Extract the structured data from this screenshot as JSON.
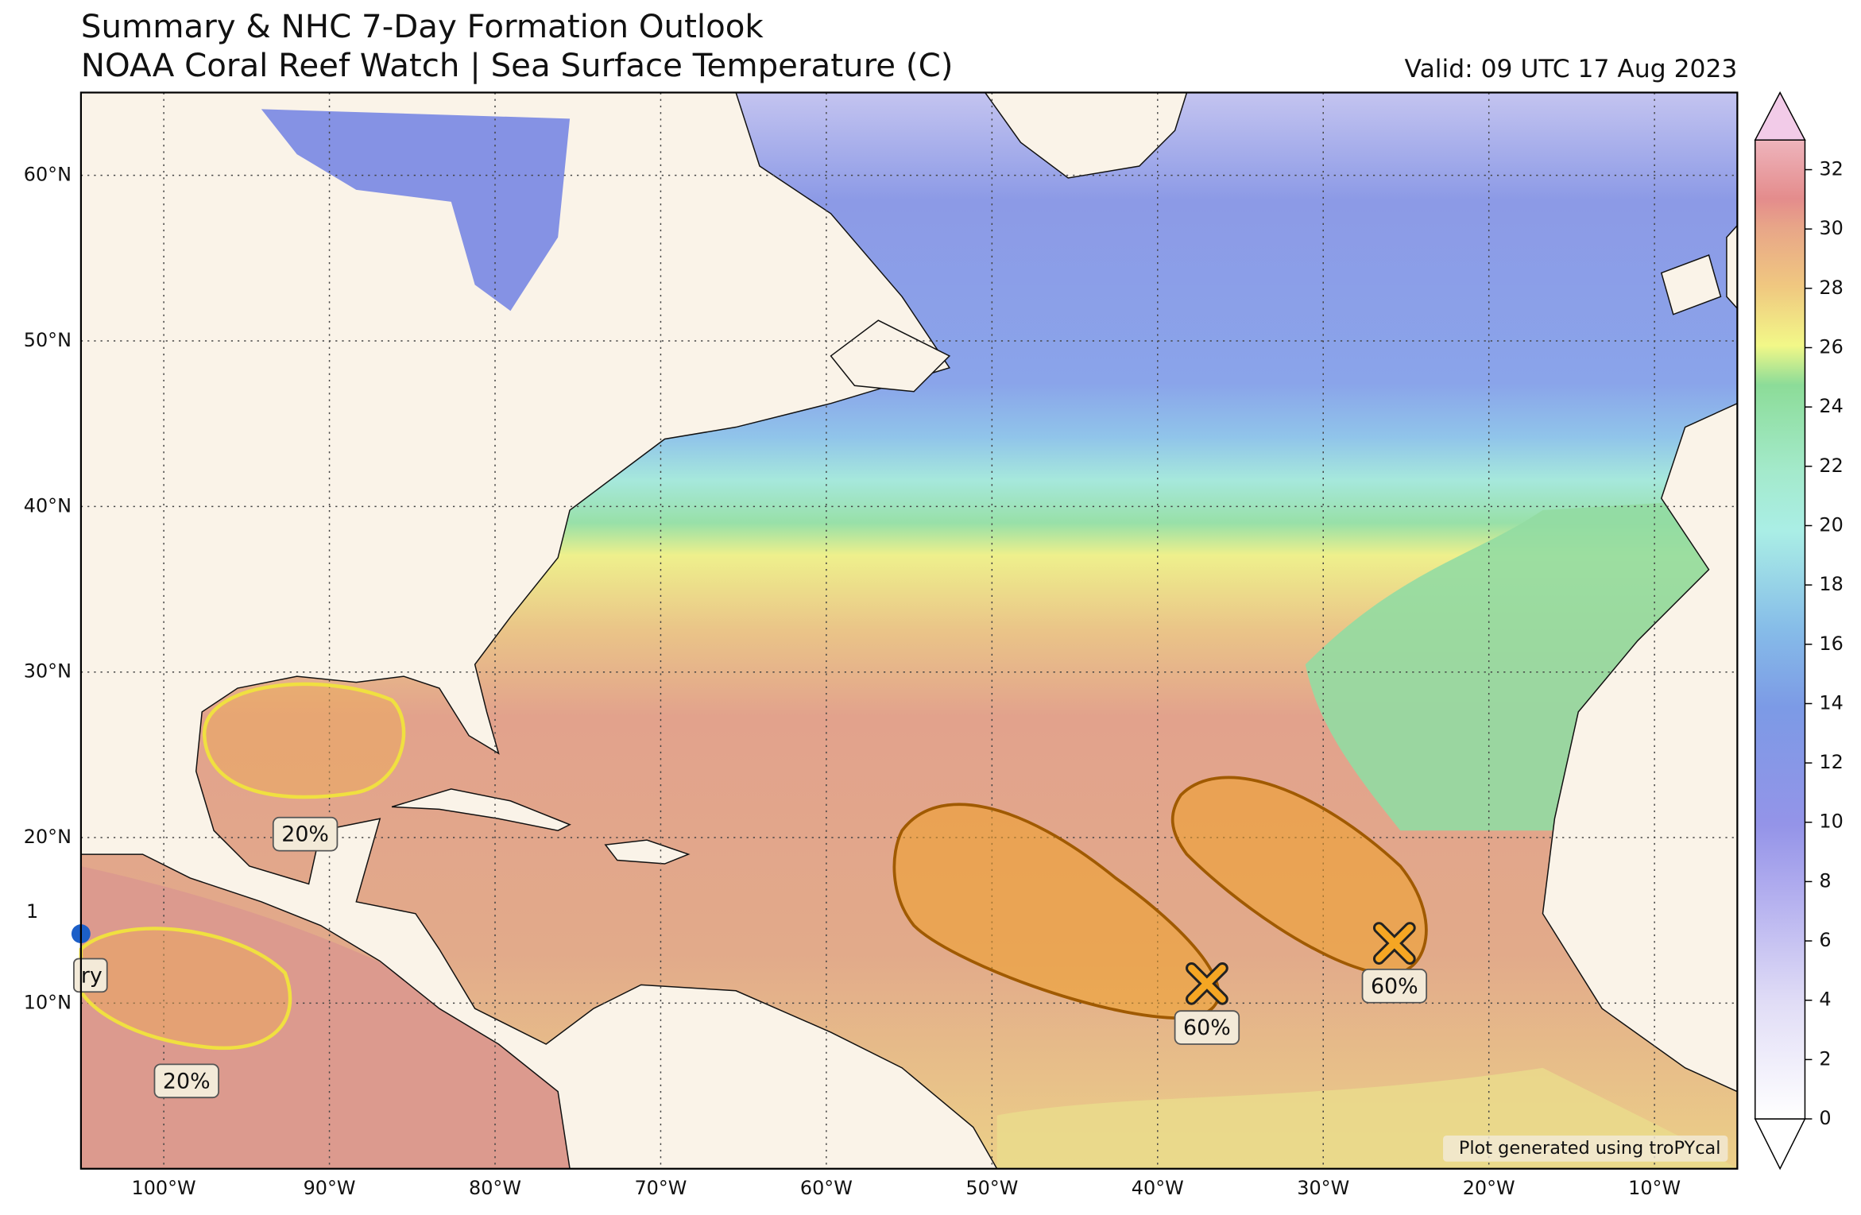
{
  "title": "Summary & NHC 7-Day Formation Outlook",
  "subtitle": "NOAA Coral Reef Watch | Sea Surface Temperature (C)",
  "valid": "Valid: 09 UTC 17 Aug 2023",
  "map": {
    "xlim": [
      -105,
      -5
    ],
    "ylim": [
      0,
      65
    ],
    "grid": true,
    "lat_ticks": [
      {
        "value": 10,
        "label": "10°N"
      },
      {
        "value": 20,
        "label": "20°N"
      },
      {
        "value": 30,
        "label": "30°N"
      },
      {
        "value": 40,
        "label": "40°N"
      },
      {
        "value": 50,
        "label": "50°N"
      },
      {
        "value": 60,
        "label": "60°N"
      }
    ],
    "lon_ticks": [
      {
        "value": -100,
        "label": "100°W"
      },
      {
        "value": -90,
        "label": "90°W"
      },
      {
        "value": -80,
        "label": "80°W"
      },
      {
        "value": -70,
        "label": "70°W"
      },
      {
        "value": -60,
        "label": "60°W"
      },
      {
        "value": -50,
        "label": "50°W"
      },
      {
        "value": -40,
        "label": "40°W"
      },
      {
        "value": -30,
        "label": "30°W"
      },
      {
        "value": -20,
        "label": "20°W"
      },
      {
        "value": -10,
        "label": "10°W"
      }
    ]
  },
  "colorbar": {
    "lim": [
      0,
      33
    ],
    "ticks": [
      0,
      2,
      4,
      6,
      8,
      10,
      12,
      14,
      16,
      18,
      20,
      22,
      24,
      26,
      28,
      30,
      32
    ]
  },
  "outlooks": [
    {
      "label": "20%"
    },
    {
      "label": "20%"
    },
    {
      "label": "60%"
    },
    {
      "label": "60%"
    }
  ],
  "edge_labels": [
    "ry",
    "1"
  ],
  "credit": "Plot generated using troPYcal"
}
